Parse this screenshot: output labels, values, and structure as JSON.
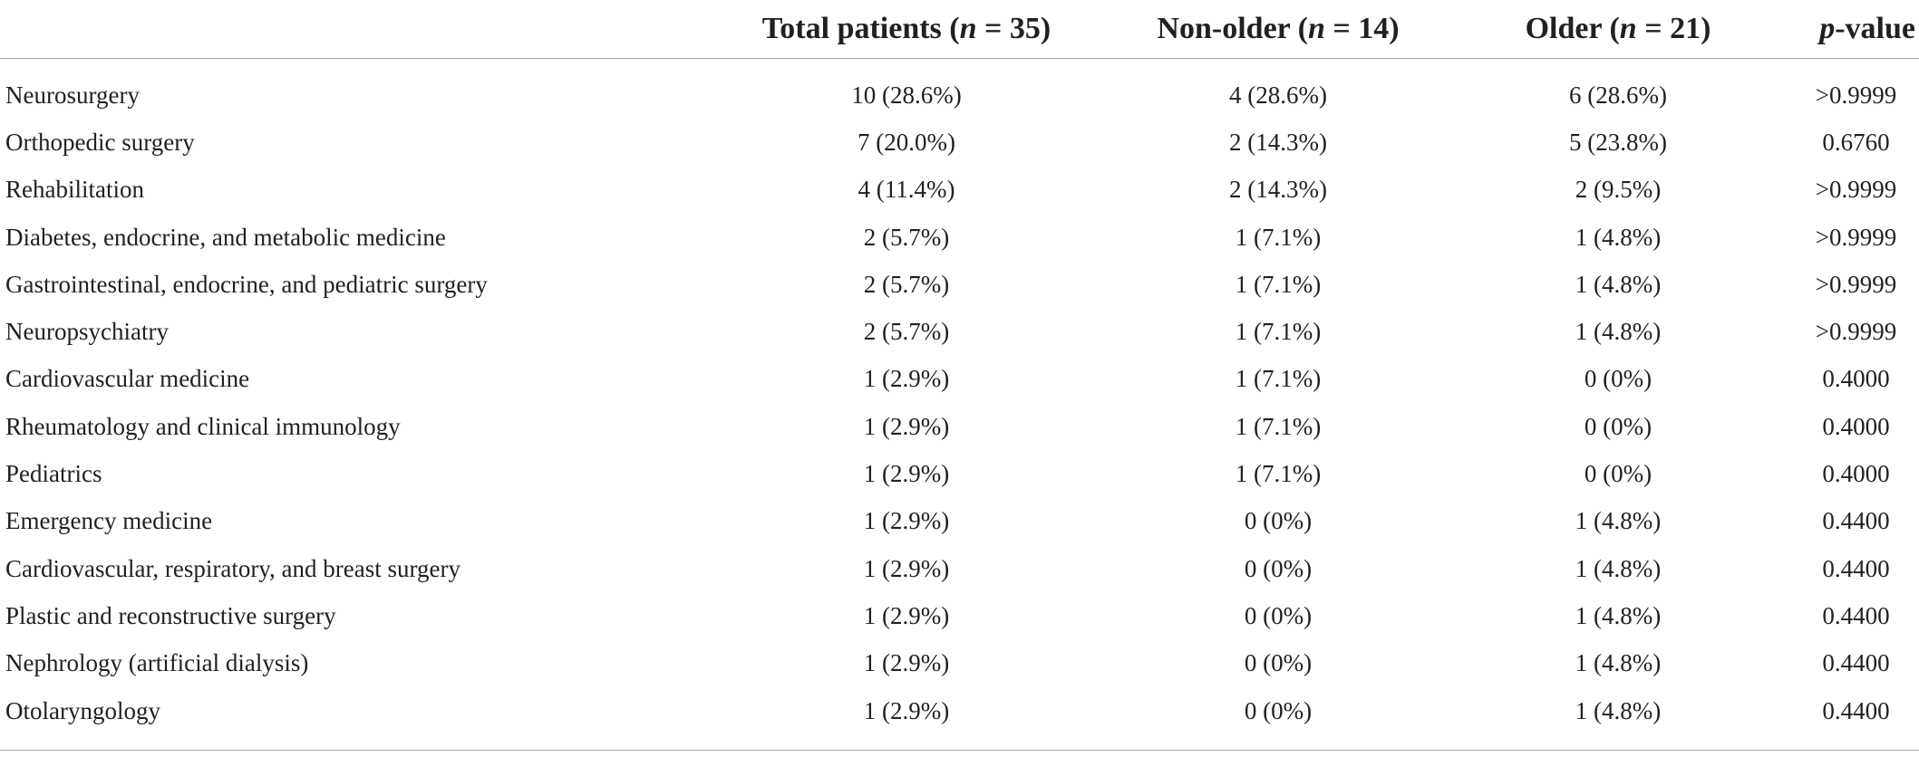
{
  "table": {
    "headers": {
      "label": "",
      "total_text": "Total patients (",
      "total_n": "n",
      "total_rest": " = 35)",
      "nonolder_text": "Non-older (",
      "nonolder_n": "n",
      "nonolder_rest": " = 14)",
      "older_text": "Older (",
      "older_n": "n",
      "older_rest": " = 21)",
      "p_italic": "p",
      "p_rest": "-value"
    },
    "rows": [
      {
        "department": "Neurosurgery",
        "total": "10 (28.6%)",
        "non_older": "4 (28.6%)",
        "older": "6 (28.6%)",
        "p": ">0.9999"
      },
      {
        "department": "Orthopedic surgery",
        "total": "7 (20.0%)",
        "non_older": "2 (14.3%)",
        "older": "5 (23.8%)",
        "p": "0.6760"
      },
      {
        "department": "Rehabilitation",
        "total": "4 (11.4%)",
        "non_older": "2 (14.3%)",
        "older": "2 (9.5%)",
        "p": ">0.9999"
      },
      {
        "department": "Diabetes, endocrine, and metabolic medicine",
        "total": "2 (5.7%)",
        "non_older": "1 (7.1%)",
        "older": "1 (4.8%)",
        "p": ">0.9999"
      },
      {
        "department": "Gastrointestinal, endocrine, and pediatric surgery",
        "total": "2 (5.7%)",
        "non_older": "1 (7.1%)",
        "older": "1 (4.8%)",
        "p": ">0.9999"
      },
      {
        "department": "Neuropsychiatry",
        "total": "2 (5.7%)",
        "non_older": "1 (7.1%)",
        "older": "1 (4.8%)",
        "p": ">0.9999"
      },
      {
        "department": "Cardiovascular medicine",
        "total": "1 (2.9%)",
        "non_older": "1 (7.1%)",
        "older": "0 (0%)",
        "p": "0.4000"
      },
      {
        "department": "Rheumatology and clinical immunology",
        "total": "1 (2.9%)",
        "non_older": "1 (7.1%)",
        "older": "0 (0%)",
        "p": "0.4000"
      },
      {
        "department": "Pediatrics",
        "total": "1 (2.9%)",
        "non_older": "1 (7.1%)",
        "older": "0 (0%)",
        "p": "0.4000"
      },
      {
        "department": "Emergency medicine",
        "total": "1 (2.9%)",
        "non_older": "0 (0%)",
        "older": "1 (4.8%)",
        "p": "0.4400"
      },
      {
        "department": "Cardiovascular, respiratory, and breast surgery",
        "total": "1 (2.9%)",
        "non_older": "0 (0%)",
        "older": "1 (4.8%)",
        "p": "0.4400"
      },
      {
        "department": "Plastic and reconstructive surgery",
        "total": "1 (2.9%)",
        "non_older": "0 (0%)",
        "older": "1 (4.8%)",
        "p": "0.4400"
      },
      {
        "department": "Nephrology (artificial dialysis)",
        "total": "1 (2.9%)",
        "non_older": "0 (0%)",
        "older": "1 (4.8%)",
        "p": "0.4400"
      },
      {
        "department": "Otolaryngology",
        "total": "1 (2.9%)",
        "non_older": "0 (0%)",
        "older": "1 (4.8%)",
        "p": "0.4400"
      }
    ]
  }
}
